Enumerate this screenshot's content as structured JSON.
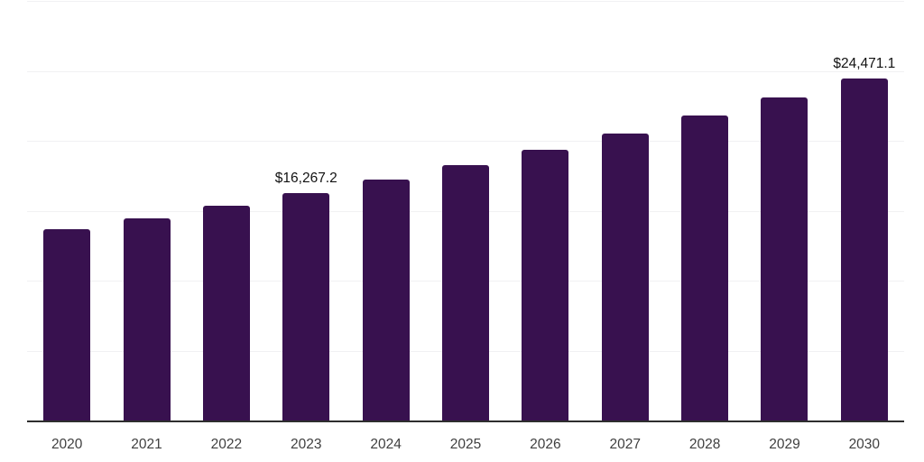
{
  "chart_data": {
    "type": "bar",
    "title": "",
    "xlabel": "",
    "ylabel": "",
    "categories": [
      "2020",
      "2021",
      "2022",
      "2023",
      "2024",
      "2025",
      "2026",
      "2027",
      "2028",
      "2029",
      "2030"
    ],
    "values": [
      13655.5,
      14475.8,
      15345.4,
      16267.2,
      17244.4,
      18280.3,
      19378.4,
      20542.5,
      21776.5,
      23084.6,
      24471.1
    ],
    "data_labels": [
      {
        "category": "2023",
        "text": "$16,267.2"
      },
      {
        "category": "2030",
        "text": "$24,471.1"
      }
    ],
    "ylim": [
      0,
      30000
    ],
    "gridline_step": 5000,
    "grid": true,
    "legend": false,
    "y_axis_tick_labels_visible": false,
    "colors": {
      "bar": "#38114f",
      "gridline": "#f1f1f3",
      "axis_line": "#2e2e2e",
      "tick_label": "#404040",
      "value_label": "#121212",
      "background": "#ffffff"
    }
  }
}
